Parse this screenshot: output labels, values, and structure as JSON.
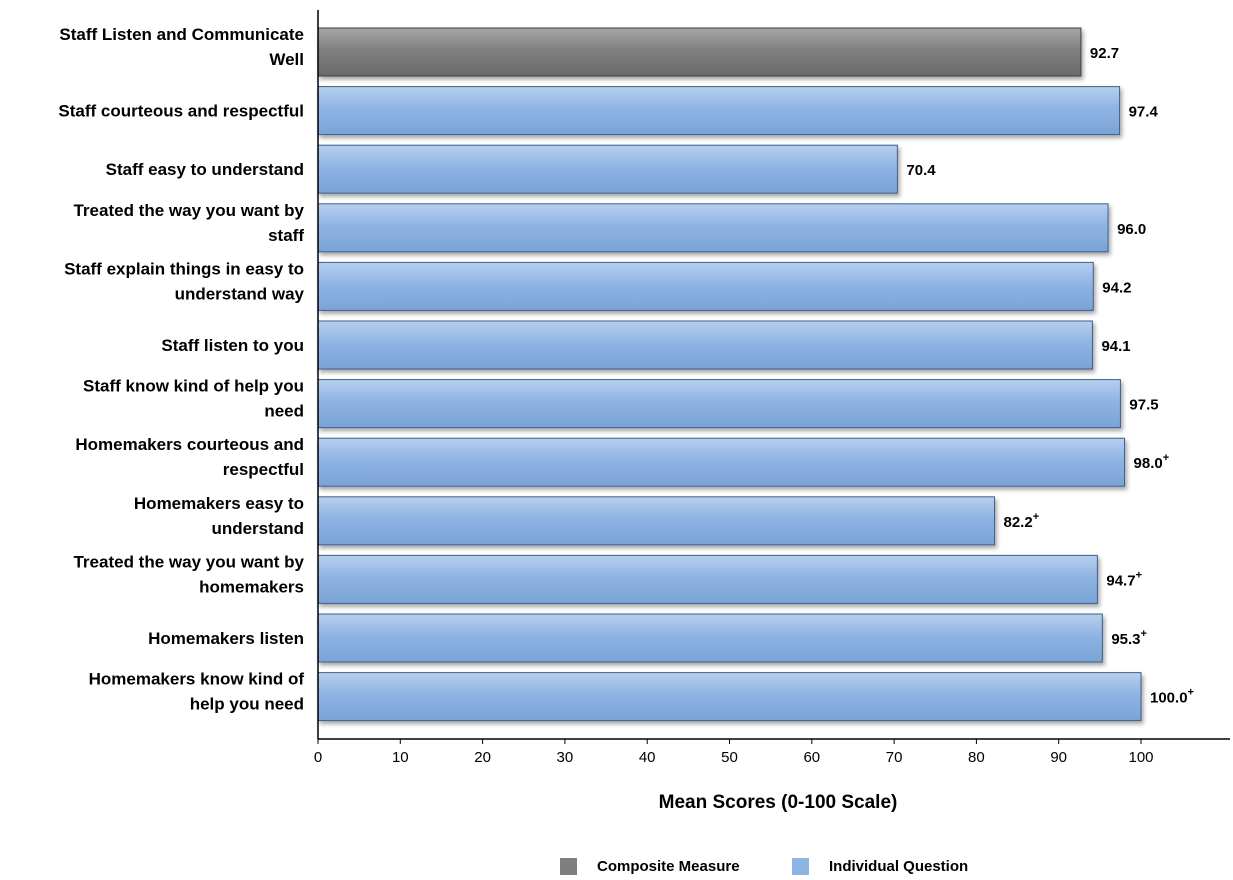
{
  "chart_data": {
    "type": "bar",
    "orientation": "horizontal",
    "xlabel": "Mean Scores (0-100 Scale)",
    "xlim": [
      0,
      110
    ],
    "xticks": [
      0,
      10,
      20,
      30,
      40,
      50,
      60,
      70,
      80,
      90,
      100
    ],
    "grid": false,
    "legend_position": "bottom",
    "legend": [
      {
        "name": "Composite Measure",
        "color": "#7f7f7f"
      },
      {
        "name": "Individual Question",
        "color": "#8eb4e3"
      }
    ],
    "categories": [
      {
        "label": [
          "Staff Listen and Communicate",
          "Well"
        ],
        "value": 92.7,
        "value_label": "92.7",
        "plus": false,
        "type": "composite"
      },
      {
        "label": [
          "Staff courteous and respectful"
        ],
        "value": 97.4,
        "value_label": "97.4",
        "plus": false,
        "type": "individual"
      },
      {
        "label": [
          "Staff easy to understand"
        ],
        "value": 70.4,
        "value_label": "70.4",
        "plus": false,
        "type": "individual"
      },
      {
        "label": [
          "Treated the way you want by",
          "staff"
        ],
        "value": 96.0,
        "value_label": "96.0",
        "plus": false,
        "type": "individual"
      },
      {
        "label": [
          "Staff explain things in easy to",
          "understand way"
        ],
        "value": 94.2,
        "value_label": "94.2",
        "plus": false,
        "type": "individual"
      },
      {
        "label": [
          "Staff listen to you"
        ],
        "value": 94.1,
        "value_label": "94.1",
        "plus": false,
        "type": "individual"
      },
      {
        "label": [
          "Staff know kind of help you",
          "need"
        ],
        "value": 97.5,
        "value_label": "97.5",
        "plus": false,
        "type": "individual"
      },
      {
        "label": [
          "Homemakers courteous and",
          "respectful"
        ],
        "value": 98.0,
        "value_label": "98.0",
        "plus": true,
        "type": "individual"
      },
      {
        "label": [
          "Homemakers easy to",
          "understand"
        ],
        "value": 82.2,
        "value_label": "82.2",
        "plus": true,
        "type": "individual"
      },
      {
        "label": [
          "Treated the way you want by",
          "homemakers"
        ],
        "value": 94.7,
        "value_label": "94.7",
        "plus": true,
        "type": "individual"
      },
      {
        "label": [
          "Homemakers listen"
        ],
        "value": 95.3,
        "value_label": "95.3",
        "plus": true,
        "type": "individual"
      },
      {
        "label": [
          "Homemakers know kind of",
          "help you need"
        ],
        "value": 100.0,
        "value_label": "100.0",
        "plus": true,
        "type": "individual"
      }
    ]
  }
}
